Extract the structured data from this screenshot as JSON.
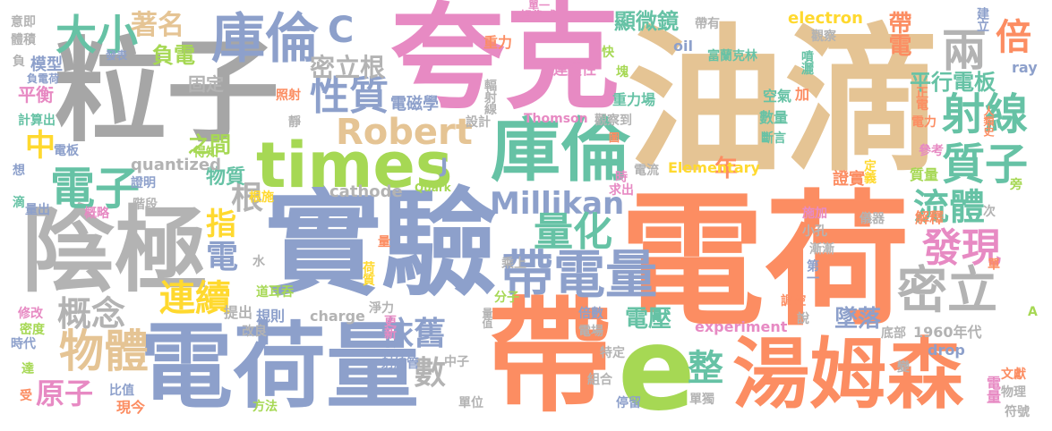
{
  "words": [
    {
      "id": "w001",
      "text": "電荷",
      "color": "#fc8d62"
    },
    {
      "id": "w002",
      "text": "實驗",
      "color": "#8da0cb"
    },
    {
      "id": "w003",
      "text": "粒子",
      "color": "#a6a6a6"
    },
    {
      "id": "w004",
      "text": "油滴",
      "color": "#e5c494"
    },
    {
      "id": "w005",
      "text": "夸克",
      "color": "#e78ac3"
    },
    {
      "id": "w006",
      "text": "電荷量",
      "color": "#8da0cb"
    },
    {
      "id": "w007",
      "text": "帶",
      "color": "#fc8d62"
    },
    {
      "id": "w008",
      "text": "陰極",
      "color": "#b3b3b3"
    },
    {
      "id": "w009",
      "text": "湯姆森",
      "color": "#fc8d62"
    },
    {
      "id": "w010",
      "text": "e",
      "color": "#a6d854"
    },
    {
      "id": "w011",
      "text": "庫倫",
      "color": "#66c2a5"
    },
    {
      "id": "w012",
      "text": "times",
      "color": "#a6d854"
    },
    {
      "id": "w013",
      "text": "庫倫",
      "color": "#8da0cb"
    },
    {
      "id": "w014",
      "text": "帶電量",
      "color": "#8da0cb"
    },
    {
      "id": "w015",
      "text": "密立",
      "color": "#b3b3b3"
    },
    {
      "id": "w016",
      "text": "射線",
      "color": "#66c2a5"
    },
    {
      "id": "w017",
      "text": "質子",
      "color": "#66c2a5"
    },
    {
      "id": "w018",
      "text": "發現",
      "color": "#e78ac3"
    },
    {
      "id": "w019",
      "text": "流體",
      "color": "#66c2a5"
    },
    {
      "id": "w020",
      "text": "Millikan",
      "color": "#8da0cb"
    },
    {
      "id": "w021",
      "text": "Robert",
      "color": "#e5c494"
    },
    {
      "id": "w022",
      "text": "物體",
      "color": "#e5c494"
    },
    {
      "id": "w023",
      "text": "電子",
      "color": "#66c2a5"
    },
    {
      "id": "w024",
      "text": "性質",
      "color": "#8da0cb"
    },
    {
      "id": "w025",
      "text": "量化",
      "color": "#66c2a5"
    },
    {
      "id": "w026",
      "text": "大小",
      "color": "#66c2a5"
    },
    {
      "id": "w027",
      "text": "概念",
      "color": "#b3b3b3"
    },
    {
      "id": "w028",
      "text": "連續",
      "color": "#ffd92f"
    },
    {
      "id": "w029",
      "text": "原子",
      "color": "#e78ac3"
    },
    {
      "id": "w030",
      "text": "依舊",
      "color": "#8da0cb"
    },
    {
      "id": "w031",
      "text": "兩",
      "color": "#b3b3b3"
    },
    {
      "id": "w032",
      "text": "倍",
      "color": "#fc8d62"
    },
    {
      "id": "w033",
      "text": "帶電",
      "color": "#fc8d62"
    },
    {
      "id": "w034",
      "text": "平行電板",
      "color": "#66c2a5"
    },
    {
      "id": "w035",
      "text": "密立根",
      "color": "#b3b3b3"
    },
    {
      "id": "w036",
      "text": "著名",
      "color": "#e5c494"
    },
    {
      "id": "w037",
      "text": "負電",
      "color": "#a6d854"
    },
    {
      "id": "w038",
      "text": "顯微鏡",
      "color": "#66c2a5"
    },
    {
      "id": "w039",
      "text": "年",
      "color": "#fc8d62"
    },
    {
      "id": "w040",
      "text": "整",
      "color": "#66c2a5"
    },
    {
      "id": "w041",
      "text": "電壓",
      "color": "#66c2a5"
    },
    {
      "id": "w042",
      "text": "墜落",
      "color": "#8da0cb"
    },
    {
      "id": "w043",
      "text": "數",
      "color": "#b3b3b3"
    },
    {
      "id": "w044",
      "text": "電",
      "color": "#8da0cb"
    },
    {
      "id": "w045",
      "text": "根",
      "color": "#b3b3b3"
    },
    {
      "id": "w046",
      "text": "指",
      "color": "#ffd92f"
    },
    {
      "id": "w047",
      "text": "中",
      "color": "#ffd92f"
    },
    {
      "id": "w048",
      "text": "電磁學",
      "color": "#8da0cb"
    },
    {
      "id": "w049",
      "text": "固定",
      "color": "#b3b3b3"
    },
    {
      "id": "w050",
      "text": "物質",
      "color": "#66c2a5"
    },
    {
      "id": "w051",
      "text": "之間",
      "color": "#a6d854"
    },
    {
      "id": "w052",
      "text": "模型",
      "color": "#8da0cb"
    },
    {
      "id": "w053",
      "text": "平衡",
      "color": "#e78ac3"
    },
    {
      "id": "w054",
      "text": "電量",
      "color": "#e78ac3"
    },
    {
      "id": "w055",
      "text": "cathode",
      "color": "#b3b3b3"
    },
    {
      "id": "w056",
      "text": "Thomson",
      "color": "#e78ac3"
    },
    {
      "id": "w057",
      "text": "Elementary",
      "color": "#ffd92f"
    },
    {
      "id": "w058",
      "text": "oil",
      "color": "#8da0cb"
    },
    {
      "id": "w059",
      "text": "electron",
      "color": "#ffd92f"
    },
    {
      "id": "w060",
      "text": "ray",
      "color": "#8da0cb"
    },
    {
      "id": "w061",
      "text": "quantized",
      "color": "#b3b3b3"
    },
    {
      "id": "w062",
      "text": "charge",
      "color": "#b3b3b3"
    },
    {
      "id": "w063",
      "text": "experiment",
      "color": "#e78ac3"
    },
    {
      "id": "w064",
      "text": "drop",
      "color": "#8da0cb"
    },
    {
      "id": "w065",
      "text": "Quark",
      "color": "#a6d854"
    },
    {
      "id": "w066",
      "text": "1960年代",
      "color": "#b3b3b3"
    },
    {
      "id": "w067",
      "text": "J",
      "color": "#8da0cb"
    },
    {
      "id": "w068",
      "text": "C",
      "color": "#8da0cb"
    },
    {
      "id": "w069",
      "text": "連續性",
      "color": "#e78ac3"
    },
    {
      "id": "w070",
      "text": "重力場",
      "color": "#66c2a5"
    },
    {
      "id": "w071",
      "text": "輻射線",
      "color": "#b3b3b3"
    },
    {
      "id": "w072",
      "text": "重力",
      "color": "#fc8d62"
    },
    {
      "id": "w073",
      "text": "富蘭克林",
      "color": "#66c2a5"
    },
    {
      "id": "w074",
      "text": "帶有",
      "color": "#b3b3b3"
    },
    {
      "id": "w075",
      "text": "觀察",
      "color": "#b3b3b3"
    },
    {
      "id": "w076",
      "text": "噴灑",
      "color": "#66c2a5"
    },
    {
      "id": "w077",
      "text": "建立",
      "color": "#8da0cb"
    },
    {
      "id": "w078",
      "text": "空氣",
      "color": "#66c2a5"
    },
    {
      "id": "w079",
      "text": "加",
      "color": "#fc8d62"
    },
    {
      "id": "w080",
      "text": "正電",
      "color": "#fc8d62"
    },
    {
      "id": "w081",
      "text": "電力",
      "color": "#fc8d62"
    },
    {
      "id": "w082",
      "text": "數量",
      "color": "#66c2a5"
    },
    {
      "id": "w083",
      "text": "斷言",
      "color": "#66c2a5"
    },
    {
      "id": "w084",
      "text": "參考",
      "color": "#e78ac3"
    },
    {
      "id": "w085",
      "text": "人類史",
      "color": "#fc8d62"
    },
    {
      "id": "w086",
      "text": "定義",
      "color": "#ffd92f"
    },
    {
      "id": "w087",
      "text": "質量",
      "color": "#a6d854"
    },
    {
      "id": "w088",
      "text": "證實",
      "color": "#fc8d62"
    },
    {
      "id": "w089",
      "text": "電流",
      "color": "#b3b3b3"
    },
    {
      "id": "w090",
      "text": "時",
      "color": "#e78ac3"
    },
    {
      "id": "w091",
      "text": "求出",
      "color": "#e78ac3"
    },
    {
      "id": "w092",
      "text": "觀察到",
      "color": "#b3b3b3"
    },
    {
      "id": "w093",
      "text": "圖",
      "color": "#fc8d62"
    },
    {
      "id": "w094",
      "text": "設計",
      "color": "#b3b3b3"
    },
    {
      "id": "w095",
      "text": "次",
      "color": "#b3b3b3"
    },
    {
      "id": "w096",
      "text": "旁",
      "color": "#a6d854"
    },
    {
      "id": "w097",
      "text": "施加",
      "color": "#e78ac3"
    },
    {
      "id": "w098",
      "text": "儀器",
      "color": "#b3b3b3"
    },
    {
      "id": "w099",
      "text": "解釋",
      "color": "#fc8d62"
    },
    {
      "id": "w100",
      "text": "小孔",
      "color": "#b3b3b3"
    },
    {
      "id": "w101",
      "text": "漸漸",
      "color": "#b3b3b3"
    },
    {
      "id": "w102",
      "text": "第一",
      "color": "#8da0cb"
    },
    {
      "id": "w103",
      "text": "調控",
      "color": "#fc8d62"
    },
    {
      "id": "w104",
      "text": "說",
      "color": "#b3b3b3"
    },
    {
      "id": "w105",
      "text": "變",
      "color": "#b3b3b3"
    },
    {
      "id": "w106",
      "text": "底部",
      "color": "#b3b3b3"
    },
    {
      "id": "w107",
      "text": "文獻",
      "color": "#fc8d62"
    },
    {
      "id": "w108",
      "text": "物理",
      "color": "#b3b3b3"
    },
    {
      "id": "w109",
      "text": "符號",
      "color": "#b3b3b3"
    },
    {
      "id": "w110",
      "text": "單獨",
      "color": "#b3b3b3"
    },
    {
      "id": "w111",
      "text": "停留",
      "color": "#8da0cb"
    },
    {
      "id": "w112",
      "text": "組合",
      "color": "#b3b3b3"
    },
    {
      "id": "w113",
      "text": "特定",
      "color": "#b3b3b3"
    },
    {
      "id": "w114",
      "text": "電場",
      "color": "#b3b3b3"
    },
    {
      "id": "w115",
      "text": "倍數",
      "color": "#8da0cb"
    },
    {
      "id": "w116",
      "text": "單位",
      "color": "#b3b3b3"
    },
    {
      "id": "w117",
      "text": "中子",
      "color": "#b3b3b3"
    },
    {
      "id": "w118",
      "text": "射線管",
      "color": "#8da0cb"
    },
    {
      "id": "w119",
      "text": "分子",
      "color": "#a6d854"
    },
    {
      "id": "w120",
      "text": "乘上",
      "color": "#b3b3b3"
    },
    {
      "id": "w121",
      "text": "量值",
      "color": "#b3b3b3"
    },
    {
      "id": "w122",
      "text": "更新",
      "color": "#e78ac3"
    },
    {
      "id": "w123",
      "text": "淨力",
      "color": "#b3b3b3"
    },
    {
      "id": "w124",
      "text": "荷質",
      "color": "#ffd92f"
    },
    {
      "id": "w125",
      "text": "量",
      "color": "#fc8d62"
    },
    {
      "id": "w126",
      "text": "道耳吞",
      "color": "#a6d854"
    },
    {
      "id": "w127",
      "text": "改良",
      "color": "#b3b3b3"
    },
    {
      "id": "w128",
      "text": "規則",
      "color": "#8da0cb"
    },
    {
      "id": "w129",
      "text": "提出",
      "color": "#b3b3b3"
    },
    {
      "id": "w130",
      "text": "方法",
      "color": "#a6d854"
    },
    {
      "id": "w131",
      "text": "現今",
      "color": "#fc8d62"
    },
    {
      "id": "w132",
      "text": "比值",
      "color": "#8da0cb"
    },
    {
      "id": "w133",
      "text": "受",
      "color": "#fc8d62"
    },
    {
      "id": "w134",
      "text": "達",
      "color": "#a6d854"
    },
    {
      "id": "w135",
      "text": "時代",
      "color": "#8da0cb"
    },
    {
      "id": "w136",
      "text": "密度",
      "color": "#a6d854"
    },
    {
      "id": "w137",
      "text": "修改",
      "color": "#e78ac3"
    },
    {
      "id": "w138",
      "text": "水",
      "color": "#b3b3b3"
    },
    {
      "id": "w139",
      "text": "根施",
      "color": "#ffd92f"
    },
    {
      "id": "w140",
      "text": "階段",
      "color": "#b3b3b3"
    },
    {
      "id": "w141",
      "text": "證明",
      "color": "#8da0cb"
    },
    {
      "id": "w142",
      "text": "概略",
      "color": "#e78ac3"
    },
    {
      "id": "w143",
      "text": "量出",
      "color": "#8da0cb"
    },
    {
      "id": "w144",
      "text": "滴",
      "color": "#66c2a5"
    },
    {
      "id": "w145",
      "text": "想",
      "color": "#8da0cb"
    },
    {
      "id": "w146",
      "text": "電板",
      "color": "#8da0cb"
    },
    {
      "id": "w147",
      "text": "得知",
      "color": "#a6d854"
    },
    {
      "id": "w148",
      "text": "計算出",
      "color": "#66c2a5"
    },
    {
      "id": "w149",
      "text": "負電荷",
      "color": "#8da0cb"
    },
    {
      "id": "w150",
      "text": "負",
      "color": "#b3b3b3"
    },
    {
      "id": "w151",
      "text": "體積",
      "color": "#b3b3b3"
    },
    {
      "id": "w152",
      "text": "意即",
      "color": "#b3b3b3"
    },
    {
      "id": "w153",
      "text": "發表",
      "color": "#8da0cb"
    },
    {
      "id": "w154",
      "text": "想像成",
      "color": "#e78ac3"
    },
    {
      "id": "w155",
      "text": "單一",
      "color": "#e78ac3"
    },
    {
      "id": "w156",
      "text": "照射",
      "color": "#fc8d62"
    },
    {
      "id": "w157",
      "text": "靜",
      "color": "#b3b3b3"
    },
    {
      "id": "w158",
      "text": "快",
      "color": "#a6d854"
    },
    {
      "id": "w159",
      "text": "塊",
      "color": "#a6d854"
    },
    {
      "id": "w160",
      "text": "A",
      "color": "#a6d854"
    },
    {
      "id": "w161",
      "text": "單",
      "color": "#fc8d62"
    }
  ]
}
